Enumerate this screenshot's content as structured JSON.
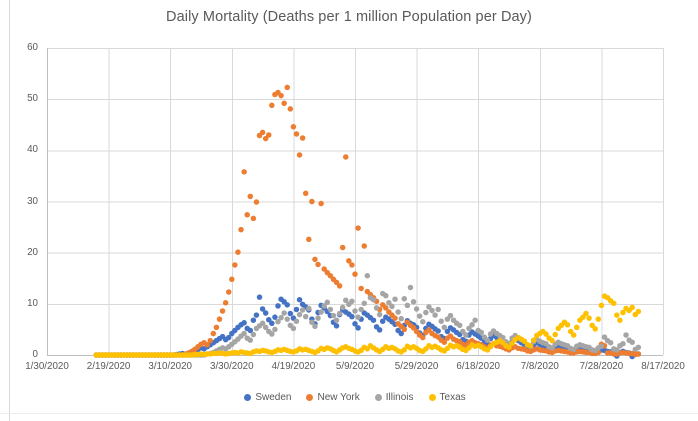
{
  "chart": {
    "title": "Daily Mortality (Deaths per 1 million Population per Day)"
  },
  "chart_data": {
    "type": "scatter",
    "title": "Daily Mortality (Deaths per 1 million Population per Day)",
    "xlabel": "",
    "ylabel": "",
    "grid": true,
    "legend_position": "bottom",
    "x_axis": {
      "start": "1/30/2020",
      "end": "8/17/2020",
      "tick_interval_days": 20,
      "ticks": [
        "1/30/2020",
        "2/19/2020",
        "3/10/2020",
        "3/30/2020",
        "4/19/2020",
        "5/9/2020",
        "5/29/2020",
        "6/18/2020",
        "7/8/2020",
        "7/28/2020",
        "8/17/2020"
      ]
    },
    "y_axis": {
      "min": 0,
      "max": 60,
      "tick_step": 10,
      "ticks": [
        0,
        10,
        20,
        30,
        40,
        50,
        60
      ]
    },
    "series_start_date": "2/15/2020",
    "series_start_day_offset": 16,
    "series_frequency": "daily",
    "series": [
      {
        "name": "Sweden",
        "color": "#4472C4",
        "values": [
          0,
          0,
          0,
          0,
          0,
          0,
          0,
          0,
          0,
          0,
          0,
          0,
          0,
          0,
          0,
          0,
          0,
          0,
          0,
          0,
          0,
          0,
          0,
          0,
          0,
          0,
          0.1,
          0.2,
          0.3,
          0.2,
          0.4,
          0.6,
          0.8,
          1.1,
          1.4,
          1.2,
          1.6,
          2.0,
          2.4,
          2.8,
          3.2,
          3.6,
          3.0,
          3.4,
          4.2,
          4.8,
          5.4,
          5.9,
          6.3,
          5.2,
          4.8,
          6.8,
          7.8,
          11.3,
          9.0,
          8.2,
          6.9,
          6.2,
          7.4,
          9.6,
          10.9,
          10.4,
          9.8,
          8.1,
          7.2,
          8.9,
          10.8,
          9.9,
          9.4,
          8.8,
          7.0,
          6.1,
          8.3,
          9.7,
          9.2,
          8.5,
          7.7,
          6.4,
          5.7,
          7.9,
          8.8,
          8.4,
          8.0,
          7.5,
          6.1,
          5.3,
          7.0,
          8.2,
          7.8,
          7.3,
          6.8,
          5.5,
          4.9,
          6.6,
          7.4,
          7.0,
          6.5,
          6.0,
          4.8,
          4.2,
          5.8,
          6.7,
          6.2,
          5.9,
          5.4,
          4.3,
          3.8,
          5.2,
          6.0,
          5.6,
          5.1,
          4.7,
          3.6,
          3.2,
          4.6,
          5.3,
          4.9,
          4.4,
          4.0,
          3.0,
          2.7,
          3.9,
          4.5,
          4.1,
          3.7,
          3.3,
          2.5,
          2.2,
          3.2,
          3.8,
          3.4,
          3.0,
          2.7,
          2.0,
          1.7,
          2.6,
          3.1,
          2.8,
          2.4,
          2.1,
          1.5,
          1.3,
          2.0,
          2.4,
          2.1,
          1.8,
          1.6,
          1.1,
          0.9,
          1.5,
          1.8,
          1.6,
          1.4,
          1.2,
          0.8,
          0.6,
          1.1,
          1.4,
          1.2,
          1.0,
          0.9,
          0.5,
          0.4,
          0.8,
          1.0,
          0.9,
          0.7,
          0.6,
          0.3,
          -0.2,
          0.5,
          0.7,
          0.5,
          0.4,
          -0.3,
          0.1,
          0.2
        ]
      },
      {
        "name": "New York",
        "color": "#ED7D31",
        "values": [
          0,
          0,
          0,
          0,
          0,
          0,
          0,
          0,
          0,
          0,
          0,
          0,
          0,
          0,
          0,
          0,
          0,
          0,
          0,
          0,
          0,
          0,
          0,
          0,
          0,
          0,
          0,
          0,
          0,
          0.2,
          0.4,
          0.7,
          1.1,
          1.6,
          2.1,
          2.4,
          2.0,
          2.8,
          4.2,
          5.4,
          7.0,
          8.6,
          10.2,
          12.3,
          14.8,
          17.6,
          20.1,
          24.5,
          35.8,
          27.4,
          31.0,
          26.7,
          29.9,
          42.9,
          43.5,
          42.3,
          43.0,
          48.8,
          50.9,
          51.3,
          50.7,
          49.2,
          52.3,
          48.1,
          44.6,
          43.2,
          39.1,
          42.4,
          31.6,
          22.6,
          30.0,
          18.7,
          17.7,
          29.6,
          16.8,
          16.1,
          15.5,
          14.8,
          14.2,
          13.5,
          21.0,
          38.7,
          18.4,
          17.6,
          15.8,
          24.8,
          13.0,
          21.3,
          12.4,
          11.8,
          11.2,
          10.5,
          8.9,
          9.8,
          9.2,
          8.4,
          7.8,
          7.2,
          6.1,
          5.6,
          5.0,
          6.4,
          5.8,
          5.3,
          4.6,
          3.9,
          3.4,
          4.4,
          4.9,
          4.2,
          3.8,
          3.5,
          2.9,
          2.5,
          3.3,
          3.7,
          3.1,
          2.8,
          2.6,
          2.1,
          1.9,
          2.5,
          2.8,
          2.4,
          2.2,
          2.0,
          1.6,
          1.4,
          1.9,
          2.2,
          1.8,
          1.7,
          1.5,
          1.2,
          1.0,
          1.4,
          1.6,
          1.3,
          1.2,
          1.1,
          0.8,
          0.7,
          1.0,
          1.2,
          1.0,
          0.9,
          0.8,
          0.6,
          0.5,
          0.8,
          0.9,
          0.8,
          0.7,
          0.6,
          0.4,
          0.4,
          0.6,
          0.7,
          0.6,
          0.5,
          0.5,
          0.3,
          0.3,
          0.5,
          2.1,
          1.8,
          0.4,
          0.4,
          0.2,
          0.2,
          0.4,
          0.5,
          0.4,
          0.3,
          0.3,
          0.1,
          0.2
        ]
      },
      {
        "name": "Illinois",
        "color": "#A5A5A5",
        "values": [
          0,
          0,
          0,
          0,
          0,
          0,
          0,
          0,
          0,
          0,
          0,
          0,
          0,
          0,
          0,
          0,
          0,
          0,
          0,
          0,
          0,
          0,
          0,
          0,
          0,
          0,
          0,
          0,
          0,
          0,
          0,
          0,
          0,
          0,
          0,
          0,
          0.2,
          0.3,
          0.5,
          0.8,
          1.1,
          1.4,
          1.2,
          1.6,
          2.1,
          2.6,
          3.1,
          3.7,
          4.2,
          3.3,
          2.9,
          4.0,
          5.2,
          5.7,
          6.2,
          5.4,
          4.6,
          4.1,
          5.0,
          6.5,
          7.3,
          8.2,
          7.0,
          5.8,
          5.2,
          6.6,
          7.9,
          8.8,
          7.5,
          9.1,
          6.4,
          5.6,
          7.2,
          8.4,
          9.6,
          10.3,
          8.9,
          7.7,
          6.8,
          8.1,
          9.3,
          10.7,
          9.9,
          10.5,
          8.6,
          7.4,
          8.9,
          10.1,
          15.5,
          11.2,
          10.8,
          9.2,
          7.9,
          12.0,
          11.6,
          10.2,
          9.5,
          10.9,
          8.4,
          7.1,
          11.0,
          9.7,
          13.2,
          10.4,
          9.0,
          7.6,
          6.5,
          8.3,
          9.4,
          8.7,
          7.8,
          8.9,
          6.6,
          5.4,
          7.0,
          7.7,
          6.8,
          6.2,
          5.8,
          4.6,
          3.9,
          5.2,
          5.9,
          6.8,
          4.8,
          4.4,
          3.5,
          2.9,
          4.1,
          4.7,
          4.2,
          3.8,
          3.4,
          2.6,
          2.2,
          3.3,
          3.8,
          3.4,
          3.0,
          2.7,
          2.0,
          1.7,
          2.6,
          3.1,
          2.7,
          2.4,
          2.2,
          1.6,
          1.4,
          2.1,
          2.5,
          2.2,
          2.0,
          1.8,
          1.3,
          1.1,
          1.7,
          2.0,
          1.8,
          1.6,
          1.5,
          1.0,
          0.9,
          1.4,
          1.7,
          3.5,
          2.8,
          2.4,
          1.2,
          1.0,
          1.8,
          2.2,
          3.9,
          2.9,
          2.5,
          1.1,
          1.5
        ]
      },
      {
        "name": "Texas",
        "color": "#FFC000",
        "values": [
          0,
          0,
          0,
          0,
          0,
          0,
          0,
          0,
          0,
          0,
          0,
          0,
          0,
          0,
          0,
          0,
          0,
          0,
          0,
          0,
          0,
          0,
          0,
          0,
          0,
          0,
          0,
          0,
          0,
          0,
          0,
          0,
          0.1,
          0.1,
          0.2,
          0.1,
          0.2,
          0.2,
          0.3,
          0.3,
          0.4,
          0.3,
          0.2,
          0.3,
          0.4,
          0.5,
          0.4,
          0.6,
          0.5,
          0.4,
          0.3,
          0.6,
          0.8,
          0.7,
          0.9,
          0.8,
          0.6,
          0.5,
          0.7,
          1.0,
          0.9,
          1.1,
          0.9,
          0.7,
          0.6,
          0.8,
          1.2,
          1.0,
          1.1,
          0.9,
          0.7,
          0.5,
          0.8,
          1.3,
          1.1,
          1.4,
          1.2,
          0.9,
          0.6,
          1.0,
          1.4,
          1.6,
          1.3,
          1.1,
          0.8,
          0.6,
          0.9,
          1.5,
          1.2,
          1.8,
          1.4,
          1.0,
          0.7,
          1.1,
          1.6,
          1.3,
          1.5,
          1.2,
          0.8,
          0.6,
          1.0,
          1.7,
          1.4,
          1.6,
          1.3,
          0.9,
          0.7,
          1.2,
          1.8,
          1.5,
          1.7,
          1.4,
          1.0,
          0.8,
          1.3,
          1.9,
          1.6,
          1.8,
          1.5,
          1.1,
          0.9,
          1.4,
          2.0,
          1.7,
          1.9,
          1.6,
          1.2,
          1.0,
          1.6,
          2.2,
          2.5,
          2.8,
          2.4,
          1.8,
          1.5,
          2.3,
          3.0,
          3.4,
          3.1,
          2.7,
          2.0,
          1.8,
          2.9,
          3.8,
          4.2,
          4.6,
          4.1,
          3.3,
          2.8,
          4.0,
          5.2,
          5.8,
          6.4,
          5.9,
          4.6,
          3.9,
          5.4,
          6.8,
          7.4,
          8.1,
          7.2,
          5.8,
          5.1,
          7.0,
          9.7,
          11.5,
          11.2,
          10.6,
          10.1,
          7.8,
          6.8,
          8.3,
          9.1,
          8.7,
          9.3,
          7.9,
          8.5
        ]
      }
    ],
    "colors": {
      "gridline": "#d9d9d9",
      "axis_line": "#bfbfbf",
      "text": "#595959"
    }
  }
}
